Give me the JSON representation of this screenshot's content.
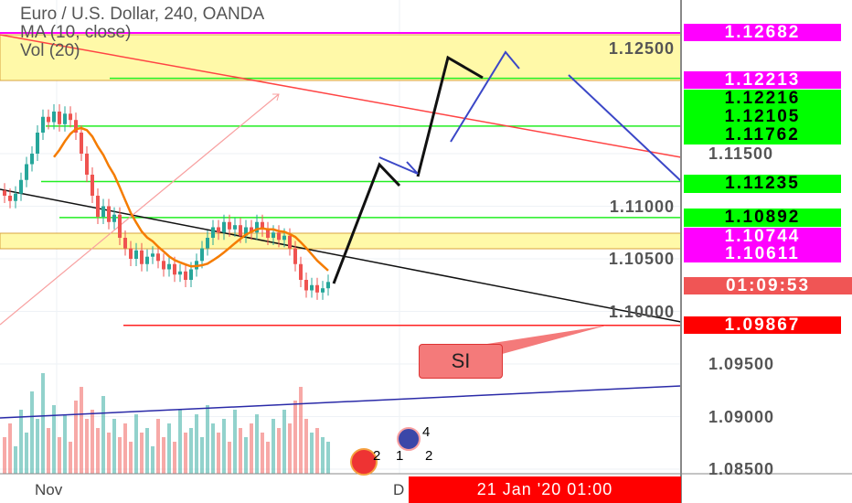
{
  "header": {
    "title": "Euro / U.S. Dollar, 240, OANDA",
    "ma": "MA (10, close)",
    "vol": "Vol (20)"
  },
  "colors": {
    "up": "#26a69a",
    "down": "#ef5350",
    "ma": "#f57c00",
    "zone": "#fff9a8",
    "level_green": "#00ff00",
    "tag_magenta": "#ff00ff",
    "tag_red": "#ff0000"
  },
  "chart_data": {
    "type": "candlestick",
    "title": "Euro / U.S. Dollar, 240, OANDA",
    "ylim": [
      1.0835,
      1.1295
    ],
    "y_ticks": [
      "1.12500",
      "1.11500",
      "1.11000",
      "1.10500",
      "1.10000",
      "1.09500",
      "1.09000",
      "1.08500"
    ],
    "x_ticks": [
      "Nov",
      "D"
    ],
    "closes": [
      1.111,
      1.1105,
      1.1112,
      1.1125,
      1.114,
      1.115,
      1.117,
      1.1185,
      1.118,
      1.119,
      1.1178,
      1.1188,
      1.1182,
      1.117,
      1.115,
      1.113,
      1.111,
      1.109,
      1.11,
      1.1085,
      1.1092,
      1.107,
      1.106,
      1.105,
      1.1058,
      1.1045,
      1.1052,
      1.1055,
      1.1048,
      1.104,
      1.1045,
      1.1035,
      1.1038,
      1.103,
      1.104,
      1.1048,
      1.106,
      1.107,
      1.108,
      1.1075,
      1.1085,
      1.1078,
      1.1082,
      1.1072,
      1.108,
      1.1075,
      1.1085,
      1.1078,
      1.107,
      1.1075,
      1.1068,
      1.1072,
      1.106,
      1.1045,
      1.103,
      1.102,
      1.1025,
      1.1018,
      1.1022,
      1.1028
    ],
    "volumes": [
      40,
      55,
      30,
      70,
      45,
      90,
      60,
      110,
      50,
      75,
      40,
      65,
      35,
      80,
      95,
      60,
      70,
      50,
      85,
      45,
      60,
      40,
      55,
      35,
      65,
      45,
      50,
      30,
      60,
      40,
      55,
      35,
      70,
      45,
      50,
      65,
      40,
      75,
      55,
      45,
      60,
      35,
      70,
      50,
      40,
      55,
      65,
      45,
      35,
      60,
      50,
      70,
      55,
      80,
      95,
      60,
      45,
      50,
      40,
      35
    ]
  },
  "levels": [
    {
      "price": "1.12682",
      "color": "magenta"
    },
    {
      "price": "1.12213",
      "color": "magenta"
    },
    {
      "price": "1.12216",
      "color": "green"
    },
    {
      "price": "1.12105",
      "color": "green"
    },
    {
      "price": "1.11762",
      "color": "green"
    },
    {
      "price": "1.11235",
      "color": "green"
    },
    {
      "price": "1.10892",
      "color": "green"
    },
    {
      "price": "1.10744",
      "color": "magenta"
    },
    {
      "price": "1.10611",
      "color": "magenta"
    },
    {
      "price": "1.09867",
      "color": "red"
    }
  ],
  "countdown": "01:09:53",
  "crosshair_date": "21 Jan '20   01:00",
  "annotation": "SI",
  "events": {
    "eu_count": "4",
    "us_counts": [
      "2",
      "1",
      "2"
    ]
  }
}
